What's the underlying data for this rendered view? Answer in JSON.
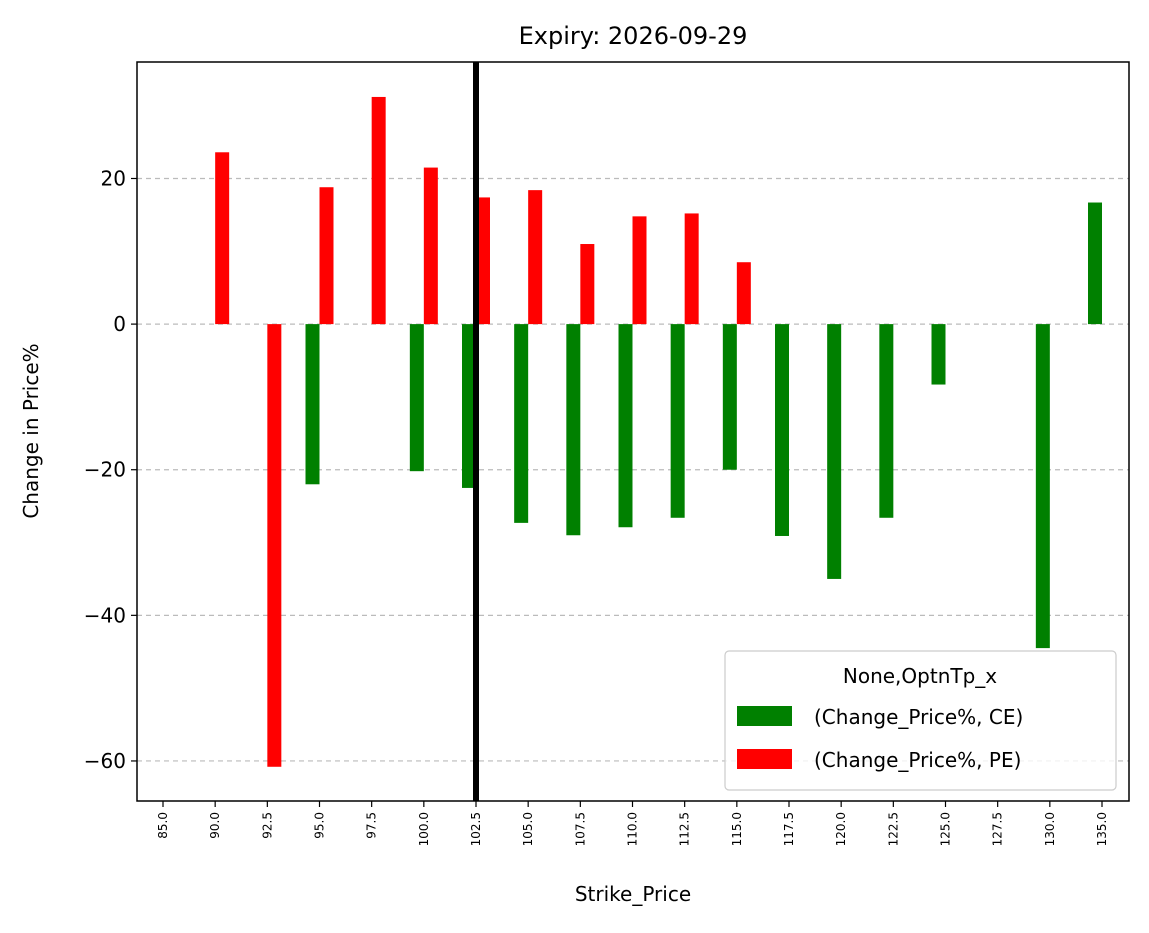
{
  "chart_data": {
    "type": "bar",
    "title": "Expiry: 2026-09-29",
    "xlabel": "Strike_Price",
    "ylabel": "Change in Price%",
    "categories": [
      "85.0",
      "90.0",
      "92.5",
      "95.0",
      "97.5",
      "100.0",
      "102.5",
      "105.0",
      "107.5",
      "110.0",
      "112.5",
      "115.0",
      "117.5",
      "120.0",
      "122.5",
      "125.0",
      "127.5",
      "130.0",
      "135.0"
    ],
    "series": [
      {
        "name": "(Change_Price%, CE)",
        "color": "#008000",
        "values": [
          null,
          null,
          null,
          -22.0,
          null,
          -20.2,
          -22.5,
          -27.3,
          -29.0,
          -27.9,
          -26.6,
          -20.0,
          -29.1,
          -35.0,
          -26.6,
          -8.3,
          null,
          -44.5,
          16.7
        ]
      },
      {
        "name": "(Change_Price%, PE)",
        "color": "#ff0000",
        "values": [
          null,
          23.6,
          -60.8,
          18.8,
          31.2,
          21.5,
          17.4,
          18.4,
          11.0,
          14.8,
          15.2,
          8.5,
          null,
          null,
          null,
          null,
          null,
          null,
          null
        ]
      }
    ],
    "ylim": [
      -65.5,
      36.0
    ],
    "yticks": [
      -60,
      -40,
      -20,
      0,
      20
    ],
    "ytick_labels": [
      "−60",
      "−40",
      "−20",
      "0",
      "20"
    ],
    "vline_at": "102.5",
    "vline_color": "#000000",
    "grid": "y-dashed",
    "legend": {
      "title": "None,OptnTp_x",
      "placement": "lower-right"
    }
  }
}
